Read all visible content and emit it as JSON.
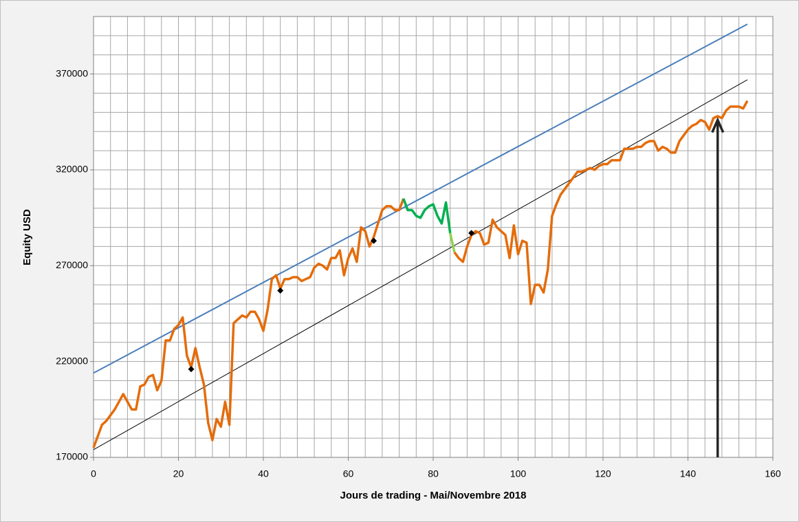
{
  "chart_data": {
    "type": "line",
    "x_label": "Jours de trading - Mai/Novembre 2018",
    "y_label": "Equity USD",
    "xlim": [
      0,
      160
    ],
    "ylim": [
      170000,
      400000
    ],
    "xticks": [
      0,
      20,
      40,
      60,
      80,
      100,
      120,
      140,
      160
    ],
    "yticks": [
      170000,
      220000,
      270000,
      320000,
      370000
    ],
    "xgrid": [
      0,
      4,
      8,
      12,
      16,
      20,
      24,
      28,
      32,
      36,
      40,
      44,
      48,
      52,
      56,
      60,
      64,
      68,
      72,
      76,
      80,
      84,
      88,
      92,
      96,
      100,
      104,
      108,
      112,
      116,
      120,
      124,
      128,
      132,
      136,
      140,
      144,
      148,
      152,
      156,
      160
    ],
    "ygrid": [
      170000,
      180000,
      190000,
      200000,
      210000,
      220000,
      230000,
      240000,
      250000,
      260000,
      270000,
      280000,
      290000,
      300000,
      310000,
      320000,
      330000,
      340000,
      350000,
      360000,
      370000,
      380000,
      390000,
      400000
    ],
    "grid": true,
    "x": [
      0,
      1,
      2,
      3,
      4,
      5,
      6,
      7,
      8,
      9,
      10,
      11,
      12,
      13,
      14,
      15,
      16,
      17,
      18,
      19,
      20,
      21,
      22,
      23,
      24,
      25,
      26,
      27,
      28,
      29,
      30,
      31,
      32,
      33,
      34,
      35,
      36,
      37,
      38,
      39,
      40,
      41,
      42,
      43,
      44,
      45,
      46,
      47,
      48,
      49,
      50,
      51,
      52,
      53,
      54,
      55,
      56,
      57,
      58,
      59,
      60,
      61,
      62,
      63,
      64,
      65,
      66,
      67,
      68,
      69,
      70,
      71,
      72,
      73,
      74,
      75,
      76,
      77,
      78,
      79,
      80,
      81,
      82,
      83,
      84,
      85,
      86,
      87,
      88,
      89,
      90,
      91,
      92,
      93,
      94,
      95,
      96,
      97,
      98,
      99,
      100,
      101,
      102,
      103,
      104,
      105,
      106,
      107,
      108,
      109,
      110,
      111,
      112,
      113,
      114,
      115,
      116,
      117,
      118,
      119,
      120,
      121,
      122,
      123,
      124,
      125,
      126,
      127,
      128,
      129,
      130,
      131,
      132,
      133,
      134,
      135,
      136,
      137,
      138,
      139,
      140,
      141,
      142,
      143,
      144,
      145,
      146,
      147,
      148,
      149,
      150,
      151,
      152,
      153,
      154
    ],
    "series": [
      {
        "color": "#e46c0a",
        "values": [
          175000,
          181000,
          187000,
          189000,
          192000,
          195000,
          199000,
          203000,
          199000,
          195000,
          195000,
          207000,
          208000,
          212000,
          213000,
          205000,
          210000,
          231000,
          231000,
          237000,
          239000,
          243000,
          223000,
          217000,
          227000,
          217000,
          208000,
          188000,
          179000,
          190000,
          186000,
          199000,
          187000,
          240000,
          242000,
          244000,
          243000,
          246000,
          246000,
          242000,
          236000,
          247000,
          263000,
          265000,
          258000,
          263000,
          263000,
          264000,
          264000,
          262000,
          263000,
          264000,
          269000,
          271000,
          270000,
          268000,
          274000,
          274000,
          278000,
          265000,
          274000,
          279000,
          272000,
          290000,
          288000,
          280000,
          285000,
          292000,
          299000,
          301000,
          301000,
          299000,
          299000,
          305000,
          299000,
          299000,
          296000,
          295000,
          299000,
          301000,
          302000,
          296000,
          292000,
          303000,
          287000,
          277000,
          274000,
          272000,
          280000,
          286000,
          288000,
          287000,
          281000,
          282000,
          294000,
          290000,
          288000,
          286000,
          274000,
          291000,
          276000,
          283000,
          282000,
          250000,
          260000,
          260000,
          256000,
          268000,
          296000,
          302000,
          307000,
          310000,
          313000,
          316000,
          319000,
          319000,
          320000,
          321000,
          320000,
          322000,
          323000,
          323000,
          325000,
          325000,
          325000,
          331000,
          331000,
          331000,
          332000,
          332000,
          334000,
          335000,
          335000,
          330000,
          332000,
          331000,
          329000,
          329000,
          335000,
          338000,
          341000,
          343000,
          344000,
          346000,
          345000,
          341000,
          347000,
          348000,
          347000,
          351000,
          353000,
          353000,
          353000,
          352000,
          356000
        ]
      }
    ],
    "segments": [
      {
        "start": 73,
        "end": 84,
        "color": "#00b050"
      },
      {
        "start": 84,
        "end": 85,
        "color": "#92d050"
      }
    ],
    "lines": [
      {
        "color": "#4a7ebb",
        "x": [
          0,
          154
        ],
        "y": [
          214000,
          396000
        ]
      },
      {
        "color": "#000000",
        "x": [
          0,
          154
        ],
        "y": [
          174000,
          367000
        ]
      }
    ],
    "markers": {
      "color": "#000000",
      "x": [
        23,
        44,
        66,
        89
      ],
      "y": [
        216000,
        257000,
        283000,
        287000
      ]
    },
    "arrow": {
      "color": "#262626",
      "x": 147,
      "y": [
        170000,
        346000
      ]
    }
  }
}
